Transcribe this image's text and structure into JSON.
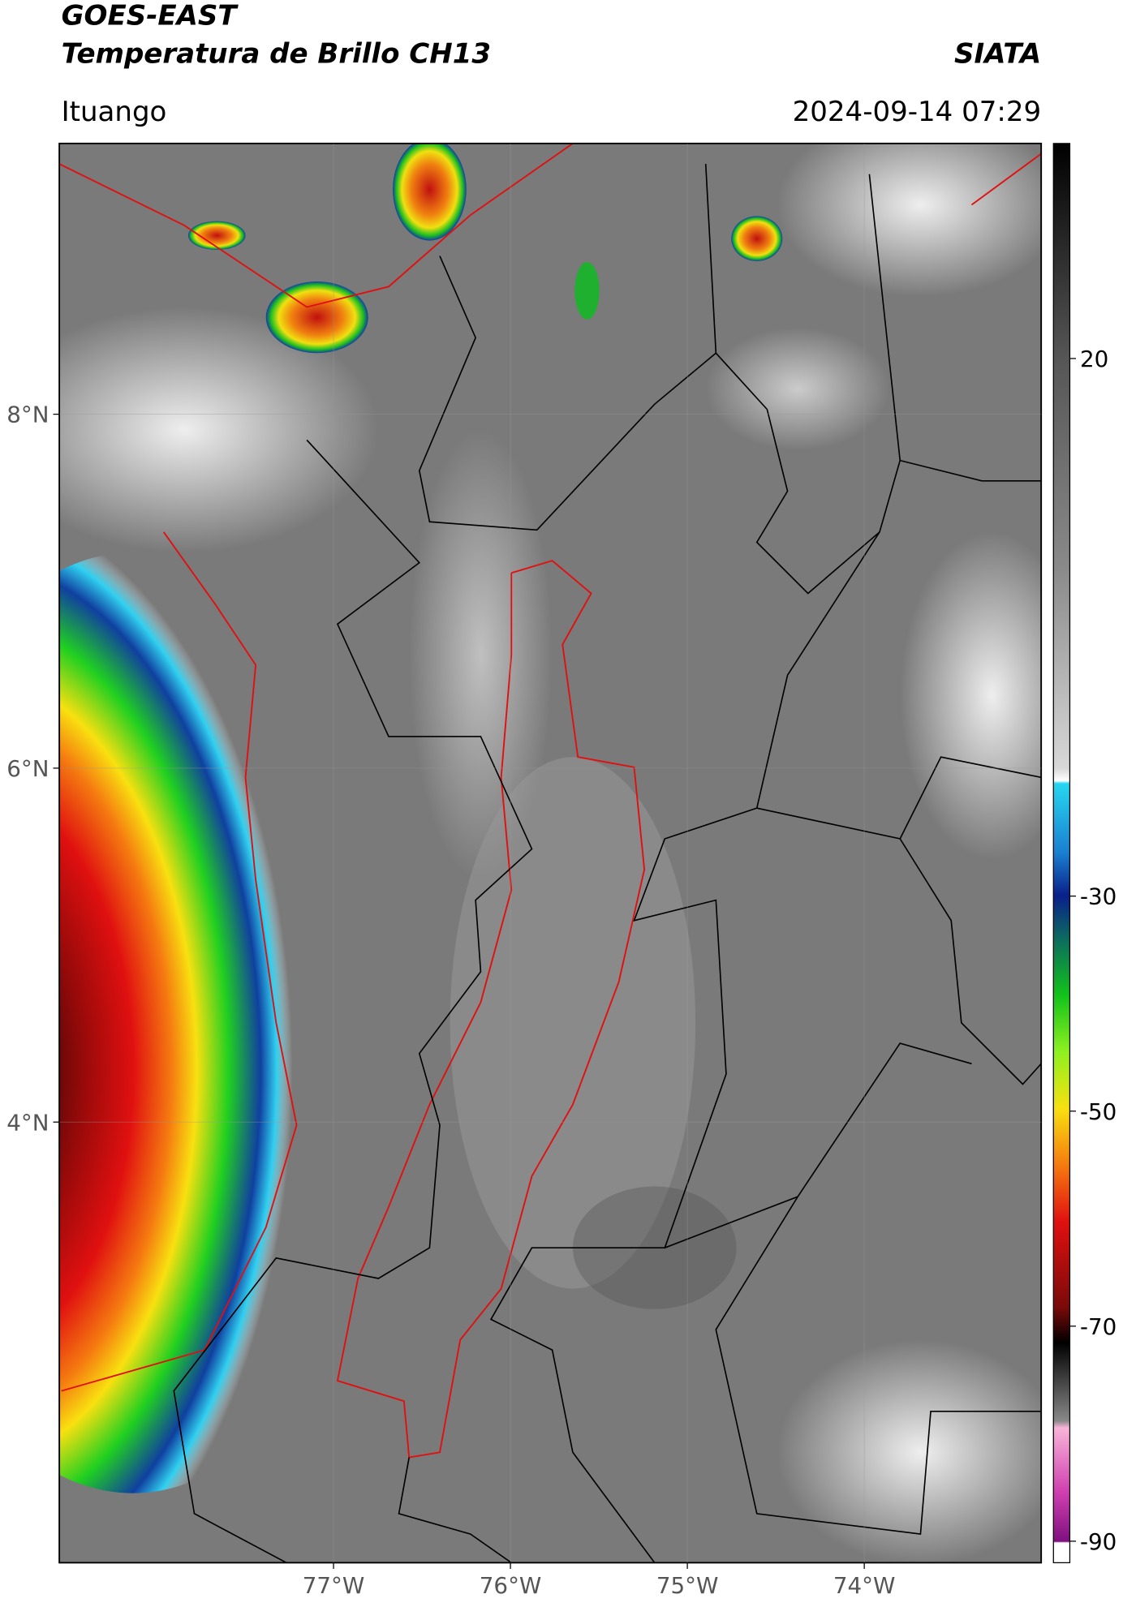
{
  "header": {
    "title": "GOES-EAST",
    "subtitle": "Temperatura de Brillo CH13",
    "source": "SIATA",
    "location": "Ituango",
    "datetime": "2024-09-14 07:29"
  },
  "map": {
    "xlim": [
      -78.55,
      -73.0
    ],
    "ylim": [
      1.51,
      9.53
    ],
    "xticks": [
      {
        "value": -77,
        "label": "77°W"
      },
      {
        "value": -76,
        "label": "76°W"
      },
      {
        "value": -75,
        "label": "75°W"
      },
      {
        "value": -74,
        "label": "74°W"
      }
    ],
    "yticks": [
      {
        "value": 8,
        "label": "8°N"
      },
      {
        "value": 6,
        "label": "6°N"
      },
      {
        "value": 4,
        "label": "4°N"
      }
    ]
  },
  "colorbar": {
    "range": [
      -92,
      40
    ],
    "ticks": [
      20,
      -30,
      -50,
      -70,
      -90
    ]
  }
}
